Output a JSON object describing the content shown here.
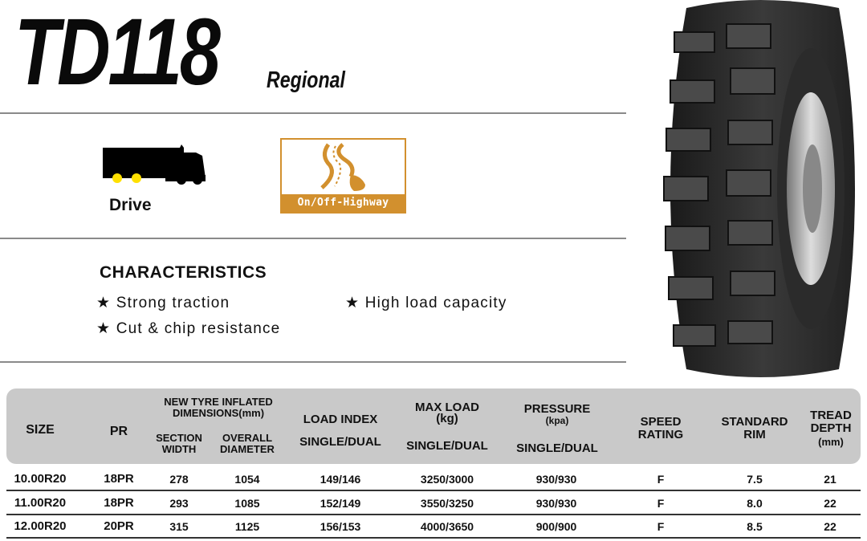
{
  "header": {
    "model": "TD118",
    "category": "Regional"
  },
  "application": {
    "position_label": "Drive",
    "position_icon": "truck-icon",
    "road_label": "On/Off-Highway",
    "road_icon": "winding-road-icon",
    "accent_color": "#d2902e",
    "wheel_color": "#ffe000"
  },
  "characteristics": {
    "title": "CHARACTERISTICS",
    "bullet": "★",
    "items": [
      "Strong traction",
      "High load capacity",
      "Cut & chip resistance"
    ]
  },
  "table": {
    "headers": {
      "size": "SIZE",
      "pr": "PR",
      "dims": "NEW TYRE INFLATED DIMENSIONS(mm)",
      "section_width": "SECTION WIDTH",
      "overall_diameter": "OVERALL DIAMETER",
      "load_index": "LOAD INDEX",
      "load_index_sub": "SINGLE/DUAL",
      "max_load": "MAX LOAD",
      "max_load_unit": "(kg)",
      "max_load_sub": "SINGLE/DUAL",
      "pressure": "PRESSURE",
      "pressure_unit": "(kpa)",
      "pressure_sub": "SINGLE/DUAL",
      "speed_rating": "SPEED RATING",
      "standard_rim": "STANDARD RIM",
      "tread_depth": "TREAD DEPTH",
      "tread_depth_unit": "(mm)"
    },
    "rows": [
      [
        "10.00R20",
        "18PR",
        "278",
        "1054",
        "149/146",
        "3250/3000",
        "930/930",
        "F",
        "7.5",
        "21"
      ],
      [
        "11.00R20",
        "18PR",
        "293",
        "1085",
        "152/149",
        "3550/3250",
        "930/930",
        "F",
        "8.0",
        "22"
      ],
      [
        "12.00R20",
        "20PR",
        "315",
        "1125",
        "156/153",
        "4000/3650",
        "900/900",
        "F",
        "8.5",
        "22"
      ]
    ]
  }
}
